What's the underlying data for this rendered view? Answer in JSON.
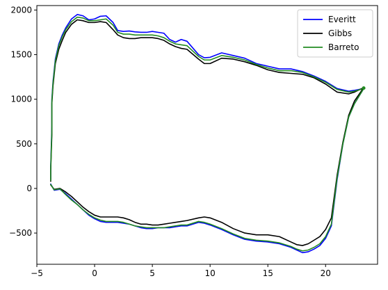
{
  "chart_data": {
    "type": "line",
    "title": "",
    "xlabel": "",
    "ylabel": "",
    "xlim": [
      -5,
      24.5
    ],
    "ylim": [
      -850,
      2050
    ],
    "xticks": [
      -5,
      0,
      5,
      10,
      15,
      20
    ],
    "yticks": [
      -500,
      0,
      500,
      1000,
      1500,
      2000
    ],
    "grid": false,
    "legend_position": "top-right",
    "series": [
      {
        "name": "Everitt",
        "color": "#0000ff",
        "x": [
          -3.8,
          -3.8,
          -3.7,
          -3.7,
          -3.6,
          -3.4,
          -3.1,
          -2.8,
          -2.5,
          -2.0,
          -1.5,
          -1.0,
          -0.5,
          0,
          0.5,
          1.0,
          1.6,
          2.0,
          2.5,
          3.0,
          3.5,
          4.0,
          4.5,
          5.0,
          5.5,
          6.0,
          6.5,
          7.0,
          7.5,
          8.0,
          9.0,
          9.5,
          10.0,
          11.0,
          12.0,
          13.0,
          14.0,
          15.0,
          16.0,
          17.0,
          18.0,
          19.0,
          20.0,
          21.0,
          22.0,
          22.5,
          23.3
        ],
        "y": [
          100,
          250,
          700,
          1000,
          1200,
          1450,
          1620,
          1720,
          1800,
          1900,
          1950,
          1935,
          1890,
          1900,
          1930,
          1935,
          1860,
          1770,
          1760,
          1765,
          1755,
          1750,
          1750,
          1760,
          1750,
          1740,
          1670,
          1640,
          1670,
          1650,
          1500,
          1465,
          1470,
          1520,
          1490,
          1460,
          1400,
          1370,
          1340,
          1340,
          1310,
          1260,
          1200,
          1120,
          1090,
          1100,
          1120
        ]
      },
      {
        "name": "Gibbs",
        "color": "#000000",
        "x": [
          -3.8,
          -3.8,
          -3.7,
          -3.7,
          -3.6,
          -3.4,
          -3.1,
          -2.8,
          -2.5,
          -2.0,
          -1.5,
          -1.0,
          -0.5,
          0,
          0.5,
          1.0,
          1.6,
          2.0,
          2.5,
          3.0,
          3.5,
          4.0,
          4.5,
          5.0,
          5.5,
          6.0,
          6.5,
          7.0,
          7.5,
          8.0,
          9.0,
          9.5,
          10.0,
          11.0,
          12.0,
          13.0,
          14.0,
          15.0,
          16.0,
          17.0,
          18.0,
          19.0,
          20.0,
          21.0,
          22.0,
          22.5,
          23.3
        ],
        "y": [
          80,
          200,
          600,
          950,
          1150,
          1400,
          1560,
          1660,
          1750,
          1840,
          1890,
          1880,
          1860,
          1860,
          1870,
          1860,
          1780,
          1720,
          1690,
          1680,
          1680,
          1690,
          1690,
          1690,
          1680,
          1660,
          1620,
          1590,
          1570,
          1560,
          1450,
          1400,
          1400,
          1460,
          1450,
          1420,
          1380,
          1330,
          1300,
          1290,
          1280,
          1240,
          1170,
          1080,
          1060,
          1080,
          1130
        ]
      },
      {
        "name": "Barreto",
        "color": "#228B22",
        "x": [
          -3.8,
          -3.8,
          -3.7,
          -3.7,
          -3.6,
          -3.4,
          -3.1,
          -2.8,
          -2.5,
          -2.0,
          -1.5,
          -1.0,
          -0.5,
          0,
          0.5,
          1.0,
          1.6,
          2.0,
          2.5,
          3.0,
          3.5,
          4.0,
          4.5,
          5.0,
          5.5,
          6.0,
          6.5,
          7.0,
          7.5,
          8.0,
          9.0,
          9.5,
          10.0,
          11.0,
          12.0,
          13.0,
          14.0,
          15.0,
          16.0,
          17.0,
          18.0,
          19.0,
          20.0,
          21.0,
          22.0,
          22.5,
          23.3
        ],
        "y": [
          90,
          220,
          650,
          980,
          1180,
          1430,
          1600,
          1700,
          1780,
          1870,
          1920,
          1910,
          1880,
          1880,
          1890,
          1900,
          1830,
          1750,
          1730,
          1730,
          1720,
          1720,
          1720,
          1720,
          1710,
          1690,
          1650,
          1620,
          1610,
          1600,
          1480,
          1440,
          1440,
          1490,
          1470,
          1440,
          1390,
          1350,
          1320,
          1320,
          1300,
          1250,
          1190,
          1110,
          1080,
          1090,
          1120
        ]
      }
    ],
    "series_lower": [
      {
        "name": "Everitt",
        "color": "#0000ff",
        "x": [
          -3.8,
          -3.5,
          -3.0,
          -2.5,
          -2.0,
          -1.5,
          -1.0,
          -0.5,
          0,
          0.5,
          1.0,
          1.5,
          2.0,
          2.5,
          3.0,
          3.5,
          4.0,
          4.5,
          5.0,
          5.5,
          6.0,
          6.5,
          7.0,
          7.5,
          8.0,
          9.0,
          9.5,
          10.0,
          11.0,
          12.0,
          13.0,
          14.0,
          15.0,
          16.0,
          17.0,
          17.5,
          18.0,
          18.5,
          19.0,
          19.5,
          20.0,
          20.5,
          21.0,
          21.5,
          22.0,
          22.5,
          23.3
        ],
        "y": [
          50,
          -20,
          -10,
          -60,
          -120,
          -180,
          -240,
          -300,
          -340,
          -370,
          -380,
          -380,
          -380,
          -390,
          -400,
          -420,
          -440,
          -450,
          -450,
          -440,
          -440,
          -440,
          -430,
          -420,
          -420,
          -380,
          -390,
          -410,
          -460,
          -520,
          -570,
          -590,
          -600,
          -620,
          -660,
          -690,
          -720,
          -710,
          -680,
          -640,
          -560,
          -420,
          100,
          500,
          800,
          950,
          1120
        ]
      },
      {
        "name": "Gibbs",
        "color": "#000000",
        "x": [
          -3.8,
          -3.5,
          -3.0,
          -2.5,
          -2.0,
          -1.5,
          -1.0,
          -0.5,
          0,
          0.5,
          1.0,
          1.5,
          2.0,
          2.5,
          3.0,
          3.5,
          4.0,
          4.5,
          5.0,
          5.5,
          6.0,
          6.5,
          7.0,
          7.5,
          8.0,
          9.0,
          9.5,
          10.0,
          11.0,
          12.0,
          13.0,
          14.0,
          15.0,
          16.0,
          17.0,
          17.5,
          18.0,
          18.5,
          19.0,
          19.5,
          20.0,
          20.5,
          21.0,
          21.5,
          22.0,
          22.5,
          23.3
        ],
        "y": [
          40,
          -10,
          0,
          -40,
          -90,
          -150,
          -210,
          -260,
          -300,
          -320,
          -320,
          -320,
          -320,
          -330,
          -350,
          -380,
          -400,
          -400,
          -410,
          -410,
          -400,
          -390,
          -380,
          -370,
          -360,
          -330,
          -320,
          -330,
          -380,
          -450,
          -500,
          -520,
          -520,
          -540,
          -600,
          -630,
          -640,
          -620,
          -580,
          -540,
          -460,
          -330,
          150,
          520,
          820,
          980,
          1130
        ]
      },
      {
        "name": "Barreto",
        "color": "#228B22",
        "x": [
          -3.8,
          -3.5,
          -3.0,
          -2.5,
          -2.0,
          -1.5,
          -1.0,
          -0.5,
          0,
          0.5,
          1.0,
          1.5,
          2.0,
          2.5,
          3.0,
          3.5,
          4.0,
          4.5,
          5.0,
          5.5,
          6.0,
          6.5,
          7.0,
          7.5,
          8.0,
          9.0,
          9.5,
          10.0,
          11.0,
          12.0,
          13.0,
          14.0,
          15.0,
          16.0,
          17.0,
          17.5,
          18.0,
          18.5,
          19.0,
          19.5,
          20.0,
          20.5,
          21.0,
          21.5,
          22.0,
          22.5,
          23.3
        ],
        "y": [
          45,
          -15,
          -5,
          -70,
          -130,
          -180,
          -240,
          -290,
          -330,
          -355,
          -370,
          -370,
          -370,
          -380,
          -400,
          -420,
          -430,
          -440,
          -440,
          -440,
          -440,
          -430,
          -420,
          -410,
          -410,
          -370,
          -380,
          -400,
          -450,
          -510,
          -560,
          -580,
          -590,
          -610,
          -650,
          -680,
          -700,
          -690,
          -660,
          -620,
          -540,
          -400,
          120,
          500,
          800,
          950,
          1120
        ]
      }
    ]
  }
}
